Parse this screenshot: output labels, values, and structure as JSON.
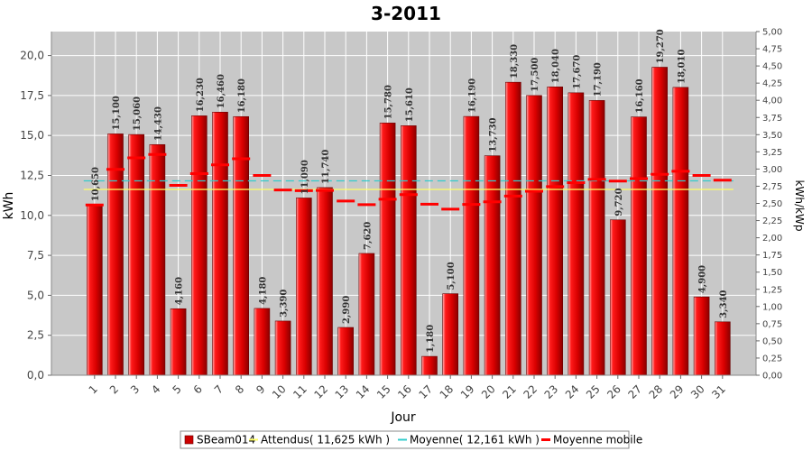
{
  "chart_data": {
    "type": "bar",
    "title": "3-2011",
    "xlabel": "Jour",
    "ylabel": "kWh",
    "y2label": "kWh/kWp",
    "ylim": [
      0,
      21.5
    ],
    "y2lim": [
      0,
      5.0
    ],
    "yticks": [
      "0,0",
      "2,5",
      "5,0",
      "7,5",
      "10,0",
      "12,5",
      "15,0",
      "17,5",
      "20,0"
    ],
    "y2ticks": [
      "0,00",
      "0,25",
      "0,50",
      "0,75",
      "1,00",
      "1,25",
      "1,50",
      "1,75",
      "2,00",
      "2,25",
      "2,50",
      "2,75",
      "3,00",
      "3,25",
      "3,50",
      "3,75",
      "4,00",
      "4,25",
      "4,50",
      "4,75",
      "5,00"
    ],
    "categories": [
      "1",
      "2",
      "3",
      "4",
      "5",
      "6",
      "7",
      "8",
      "9",
      "10",
      "11",
      "12",
      "13",
      "14",
      "15",
      "16",
      "17",
      "18",
      "19",
      "20",
      "21",
      "22",
      "23",
      "24",
      "25",
      "26",
      "27",
      "28",
      "29",
      "30",
      "31"
    ],
    "series": [
      {
        "name": "SBeam014",
        "kind": "bar",
        "color": "#e00000",
        "values": [
          10.65,
          15.1,
          15.06,
          14.43,
          4.16,
          16.23,
          16.46,
          16.18,
          4.18,
          3.39,
          11.09,
          11.74,
          2.99,
          7.62,
          15.78,
          15.61,
          1.18,
          5.1,
          16.19,
          13.73,
          18.33,
          17.5,
          18.04,
          17.67,
          17.19,
          9.72,
          16.16,
          19.27,
          18.01,
          4.9,
          3.34
        ],
        "labels": [
          "10,650",
          "15,100",
          "15,060",
          "14,430",
          "4,160",
          "16,230",
          "16,460",
          "16,180",
          "4,180",
          "3,390",
          "11,090",
          "11,740",
          "2,990",
          "7,620",
          "15,780",
          "15,610",
          "1,180",
          "5,100",
          "16,190",
          "13,730",
          "18,330",
          "17,500",
          "18,040",
          "17,670",
          "17,190",
          "9,720",
          "16,160",
          "19,270",
          "18,010",
          "4,900",
          "3,340"
        ]
      },
      {
        "name": "Attendus( 11,625 kWh )",
        "kind": "hline",
        "color": "#ffff66",
        "value": 11.625
      },
      {
        "name": "Moyenne( 12,161 kWh )",
        "kind": "hline",
        "color": "#33cccc",
        "value": 12.161
      },
      {
        "name": "Moyenne mobile",
        "kind": "marker",
        "color": "#ff0000",
        "values": [
          10.65,
          12.88,
          13.6,
          13.81,
          11.88,
          12.61,
          13.16,
          13.54,
          12.5,
          11.59,
          11.55,
          11.56,
          10.9,
          10.67,
          11.01,
          11.3,
          10.7,
          10.39,
          10.69,
          10.85,
          11.21,
          11.51,
          11.8,
          12.05,
          12.25,
          12.15,
          12.3,
          12.57,
          12.76,
          12.5,
          12.2
        ]
      }
    ],
    "grid": true,
    "legend": "bottom"
  }
}
